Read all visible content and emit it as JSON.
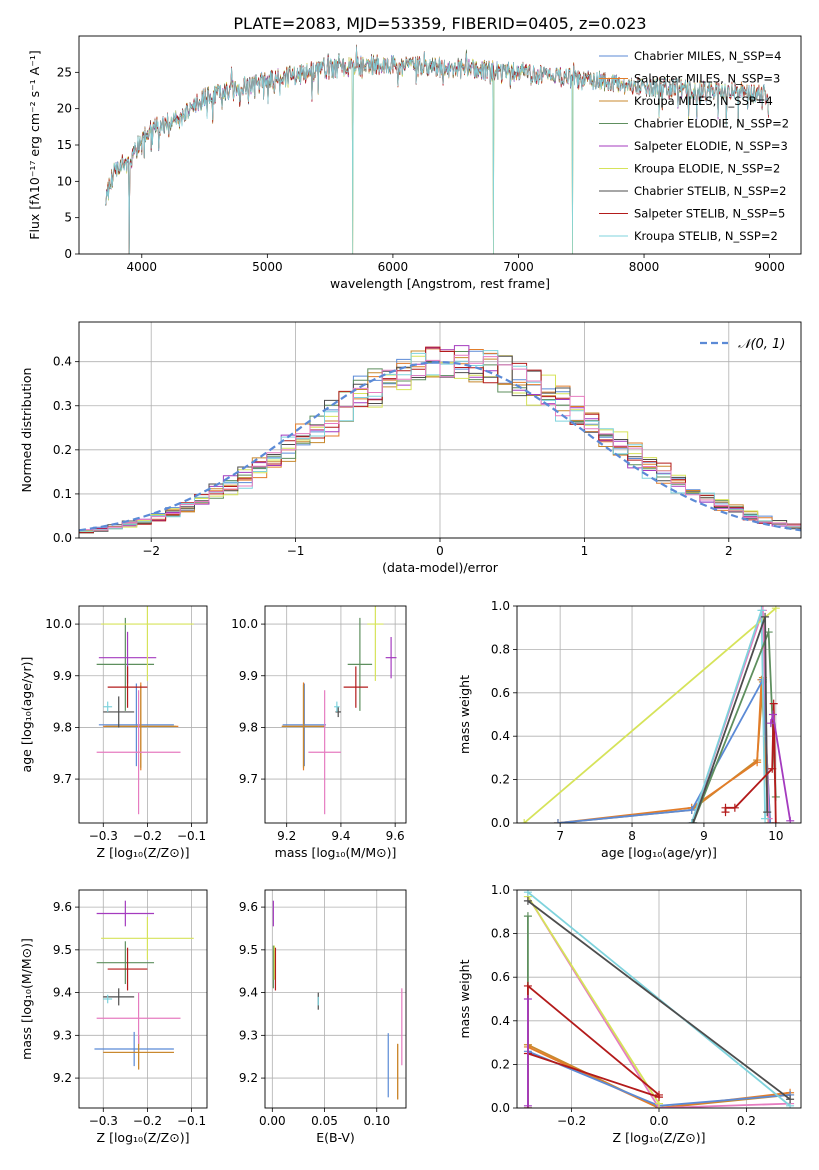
{
  "figure_title": "PLATE=2083, MJD=53359, FIBERID=0405, z=0.023",
  "colors": {
    "c1": "#5b8ad6",
    "c2": "#e27d2a",
    "c3": "#c8892f",
    "c4": "#5e8f5e",
    "c5": "#a43bbf",
    "c6": "#d6e35a",
    "c7": "#4d4d4d",
    "c8": "#b31b1b",
    "c9": "#7fd3dd",
    "c10": "#e67cc0",
    "gauss": "#5b8ad6"
  },
  "chart_data": [
    {
      "id": "spectrum",
      "type": "line",
      "title": "PLATE=2083, MJD=53359, FIBERID=0405, z=0.023",
      "xlabel": "wavelength [Angstrom, rest frame]",
      "ylabel": "Flux [fλ10⁻¹⁷ erg cm⁻² s⁻¹ A⁻¹]",
      "xlim": [
        3500,
        9250
      ],
      "ylim": [
        0,
        30
      ],
      "xticks": [
        4000,
        5000,
        6000,
        7000,
        8000,
        9000
      ],
      "yticks": [
        0,
        5,
        10,
        15,
        20,
        25
      ],
      "grid": false,
      "legend_position": "top-right",
      "spectrum_range": [
        3710,
        8990
      ],
      "series": [
        {
          "name": "Chabrier MILES, N_SSP=4",
          "color_key": "c1"
        },
        {
          "name": "Salpeter MILES, N_SSP=3",
          "color_key": "c2"
        },
        {
          "name": "Kroupa MILES, N_SSP=4",
          "color_key": "c3"
        },
        {
          "name": "Chabrier ELODIE, N_SSP=2",
          "color_key": "c4"
        },
        {
          "name": "Salpeter ELODIE, N_SSP=3",
          "color_key": "c5"
        },
        {
          "name": "Kroupa ELODIE, N_SSP=2",
          "color_key": "c6"
        },
        {
          "name": "Chabrier STELIB, N_SSP=2",
          "color_key": "c7"
        },
        {
          "name": "Salpeter STELIB, N_SSP=5",
          "color_key": "c8"
        },
        {
          "name": "Kroupa STELIB, N_SSP=2",
          "color_key": "c9"
        }
      ],
      "continuum": [
        [
          3710,
          8
        ],
        [
          3800,
          12
        ],
        [
          3900,
          12.5
        ],
        [
          4000,
          16
        ],
        [
          4100,
          17.5
        ],
        [
          4300,
          18.5
        ],
        [
          4500,
          21.5
        ],
        [
          4800,
          23
        ],
        [
          5000,
          23.8
        ],
        [
          5200,
          24.5
        ],
        [
          5500,
          25.5
        ],
        [
          5800,
          26
        ],
        [
          6000,
          26
        ],
        [
          6500,
          25.5
        ],
        [
          7000,
          25
        ],
        [
          7500,
          24
        ],
        [
          8000,
          23
        ],
        [
          8500,
          22.5
        ],
        [
          8990,
          22
        ]
      ],
      "drops": [
        [
          3900,
          0
        ],
        [
          5680,
          0
        ],
        [
          6800,
          0
        ],
        [
          7430,
          0
        ]
      ]
    },
    {
      "id": "residuals",
      "type": "histogram",
      "xlabel": "(data-model)/error",
      "ylabel": "Normed distribution",
      "xlim": [
        -2.5,
        2.5
      ],
      "ylim": [
        0,
        0.49
      ],
      "xticks": [
        -2,
        -1,
        0,
        1,
        2
      ],
      "xtick_labels": [
        "−2",
        "−1",
        "0",
        "1",
        "2"
      ],
      "yticks": [
        0,
        0.1,
        0.2,
        0.3,
        0.4
      ],
      "ytick_labels": [
        "0.0",
        "0.1",
        "0.2",
        "0.3",
        "0.4"
      ],
      "grid": true,
      "legend_position": "top-right",
      "legend_label": "𝒩(0, 1)",
      "bin_width": 0.1,
      "shift": 0.12,
      "series_color_keys": [
        "c1",
        "c2",
        "c3",
        "c4",
        "c5",
        "c6",
        "c7",
        "c8",
        "c9",
        "c10"
      ]
    },
    {
      "id": "age-vs-z",
      "type": "errorbar",
      "xlabel": "Z [log₁₀(Z/Z⊙)]",
      "ylabel": "age  [log₁₀(age/yr)]",
      "xlim": [
        -0.355,
        -0.065
      ],
      "ylim": [
        9.615,
        10.035
      ],
      "xticks": [
        -0.3,
        -0.2,
        -0.1
      ],
      "xtick_labels": [
        "−0.3",
        "−0.2",
        "−0.1"
      ],
      "yticks": [
        9.7,
        9.8,
        9.9,
        10.0
      ],
      "ytick_labels": [
        "9.7",
        "9.8",
        "9.9",
        "10.0"
      ],
      "grid": true,
      "points": [
        {
          "x": -0.225,
          "y": 9.805,
          "xerr": 0.085,
          "yerr": 0.08,
          "color_key": "c1"
        },
        {
          "x": -0.215,
          "y": 9.802,
          "xerr": 0.085,
          "yerr": 0.085,
          "color_key": "c2"
        },
        {
          "x": -0.215,
          "y": 9.802,
          "xerr": 0.08,
          "yerr": 0.08,
          "color_key": "c3"
        },
        {
          "x": -0.25,
          "y": 9.922,
          "xerr": 0.065,
          "yerr": 0.09,
          "color_key": "c4"
        },
        {
          "x": -0.245,
          "y": 9.935,
          "xerr": 0.065,
          "yerr": 0.05,
          "color_key": "c5"
        },
        {
          "x": -0.2,
          "y": 10.0,
          "xerr": 0.105,
          "yerr": 0.11,
          "color_key": "c6"
        },
        {
          "x": -0.265,
          "y": 9.83,
          "xerr": 0.035,
          "yerr": 0.03,
          "color_key": "c7"
        },
        {
          "x": -0.245,
          "y": 9.878,
          "xerr": 0.045,
          "yerr": 0.04,
          "color_key": "c8"
        },
        {
          "x": -0.29,
          "y": 9.84,
          "xerr": 0.01,
          "yerr": 0.01,
          "color_key": "c9"
        },
        {
          "x": -0.22,
          "y": 9.752,
          "xerr": 0.095,
          "yerr": 0.12,
          "color_key": "c10"
        }
      ]
    },
    {
      "id": "age-vs-mass",
      "type": "errorbar",
      "xlabel": "mass [log₁₀(M/M⊙)]",
      "ylabel": "",
      "xlim": [
        9.12,
        9.64
      ],
      "ylim": [
        9.615,
        10.035
      ],
      "xticks": [
        9.2,
        9.4,
        9.6
      ],
      "xtick_labels": [
        "9.2",
        "9.4",
        "9.6"
      ],
      "yticks": [
        9.7,
        9.8,
        9.9,
        10.0
      ],
      "ytick_labels": [
        "9.7",
        "9.8",
        "9.9",
        "10.0"
      ],
      "grid": true,
      "points": [
        {
          "x": 9.265,
          "y": 9.805,
          "xerr": 0.08,
          "yerr": 0.08,
          "color_key": "c1"
        },
        {
          "x": 9.262,
          "y": 9.802,
          "xerr": 0.08,
          "yerr": 0.085,
          "color_key": "c2"
        },
        {
          "x": 9.262,
          "y": 9.802,
          "xerr": 0.08,
          "yerr": 0.08,
          "color_key": "c3"
        },
        {
          "x": 9.47,
          "y": 9.922,
          "xerr": 0.045,
          "yerr": 0.09,
          "color_key": "c4"
        },
        {
          "x": 9.585,
          "y": 9.935,
          "xerr": 0.02,
          "yerr": 0.04,
          "color_key": "c5"
        },
        {
          "x": 9.527,
          "y": 10.0,
          "xerr": 0.03,
          "yerr": 0.11,
          "color_key": "c6"
        },
        {
          "x": 9.39,
          "y": 9.83,
          "xerr": 0.01,
          "yerr": 0.01,
          "color_key": "c7"
        },
        {
          "x": 9.455,
          "y": 9.878,
          "xerr": 0.045,
          "yerr": 0.04,
          "color_key": "c8"
        },
        {
          "x": 9.385,
          "y": 9.84,
          "xerr": 0.01,
          "yerr": 0.01,
          "color_key": "c9"
        },
        {
          "x": 9.34,
          "y": 9.752,
          "xerr": 0.06,
          "yerr": 0.12,
          "color_key": "c10"
        }
      ]
    },
    {
      "id": "weight-vs-age",
      "type": "line",
      "xlabel": "age  [log₁₀(age/yr)]",
      "ylabel": "mass weight",
      "xlim": [
        6.4,
        10.35
      ],
      "ylim": [
        0,
        1.0
      ],
      "xticks": [
        7,
        8,
        9,
        10
      ],
      "xtick_labels": [
        "7",
        "8",
        "9",
        "10"
      ],
      "yticks": [
        0,
        0.2,
        0.4,
        0.6,
        0.8,
        1.0
      ],
      "ytick_labels": [
        "0.0",
        "0.2",
        "0.4",
        "0.6",
        "0.8",
        "1.0"
      ],
      "grid": true,
      "series": [
        {
          "color_key": "c3",
          "points": [
            [
              6.97,
              0.0
            ],
            [
              8.83,
              0.06
            ],
            [
              9.74,
              0.29
            ],
            [
              9.82,
              0.65
            ],
            [
              9.82,
              0.67
            ],
            [
              9.92,
              0.0
            ]
          ]
        },
        {
          "color_key": "c2",
          "points": [
            [
              6.97,
              0.0
            ],
            [
              8.83,
              0.07
            ],
            [
              9.74,
              0.28
            ],
            [
              9.8,
              0.66
            ],
            [
              9.9,
              0.0
            ]
          ]
        },
        {
          "color_key": "c1",
          "points": [
            [
              6.97,
              0.0
            ],
            [
              8.83,
              0.06
            ],
            [
              9.82,
              0.66
            ],
            [
              9.92,
              0.0
            ]
          ]
        },
        {
          "color_key": "c10",
          "points": [
            [
              8.83,
              0.0
            ],
            [
              9.82,
              0.98
            ],
            [
              9.9,
              0.02
            ]
          ]
        },
        {
          "color_key": "c6",
          "points": [
            [
              6.5,
              0.0
            ],
            [
              10.0,
              0.99
            ]
          ]
        },
        {
          "color_key": "c9",
          "points": [
            [
              8.83,
              0.0
            ],
            [
              9.8,
              0.98
            ],
            [
              9.85,
              0.02
            ]
          ]
        },
        {
          "color_key": "c4",
          "points": [
            [
              8.85,
              0.0
            ],
            [
              9.9,
              0.88
            ],
            [
              10.0,
              0.12
            ]
          ]
        },
        {
          "color_key": "c7",
          "points": [
            [
              8.85,
              0.0
            ],
            [
              9.85,
              0.95
            ],
            [
              9.88,
              0.05
            ]
          ]
        },
        {
          "color_key": "c8",
          "points": [
            [
              9.3,
              0.05
            ],
            [
              9.3,
              0.07
            ],
            [
              9.43,
              0.07
            ],
            [
              9.95,
              0.25
            ],
            [
              9.97,
              0.55
            ],
            [
              10.0,
              0.0
            ]
          ]
        },
        {
          "color_key": "c5",
          "points": [
            [
              9.93,
              0.46
            ],
            [
              9.96,
              0.5
            ],
            [
              10.2,
              0.01
            ]
          ]
        }
      ]
    },
    {
      "id": "mass-vs-z",
      "type": "errorbar",
      "xlabel": "Z [log₁₀(Z/Z⊙)]",
      "ylabel": "mass [log₁₀(M/M⊙)]",
      "xlim": [
        -0.355,
        -0.065
      ],
      "ylim": [
        9.13,
        9.64
      ],
      "xticks": [
        -0.3,
        -0.2,
        -0.1
      ],
      "xtick_labels": [
        "−0.3",
        "−0.2",
        "−0.1"
      ],
      "yticks": [
        9.2,
        9.3,
        9.4,
        9.5,
        9.6
      ],
      "ytick_labels": [
        "9.2",
        "9.3",
        "9.4",
        "9.5",
        "9.6"
      ],
      "grid": true,
      "points": [
        {
          "x": -0.23,
          "y": 9.268,
          "xerr": 0.09,
          "yerr": 0.04,
          "color_key": "c1"
        },
        {
          "x": -0.22,
          "y": 9.26,
          "xerr": 0.08,
          "yerr": 0.04,
          "color_key": "c2"
        },
        {
          "x": -0.22,
          "y": 9.26,
          "xerr": 0.08,
          "yerr": 0.04,
          "color_key": "c3"
        },
        {
          "x": -0.25,
          "y": 9.47,
          "xerr": 0.065,
          "yerr": 0.05,
          "color_key": "c4"
        },
        {
          "x": -0.25,
          "y": 9.585,
          "xerr": 0.065,
          "yerr": 0.03,
          "color_key": "c5"
        },
        {
          "x": -0.2,
          "y": 9.527,
          "xerr": 0.105,
          "yerr": 0.05,
          "color_key": "c6"
        },
        {
          "x": -0.265,
          "y": 9.39,
          "xerr": 0.035,
          "yerr": 0.02,
          "color_key": "c7"
        },
        {
          "x": -0.245,
          "y": 9.455,
          "xerr": 0.045,
          "yerr": 0.05,
          "color_key": "c8"
        },
        {
          "x": -0.29,
          "y": 9.385,
          "xerr": 0.01,
          "yerr": 0.01,
          "color_key": "c9"
        },
        {
          "x": -0.22,
          "y": 9.34,
          "xerr": 0.095,
          "yerr": 0.06,
          "color_key": "c10"
        }
      ]
    },
    {
      "id": "mass-vs-ebv",
      "type": "errorbar",
      "xlabel": "E(B-V)",
      "ylabel": "",
      "xlim": [
        -0.007,
        0.128
      ],
      "ylim": [
        9.13,
        9.64
      ],
      "xticks": [
        0.0,
        0.05,
        0.1
      ],
      "xtick_labels": [
        "0.00",
        "0.05",
        "0.10"
      ],
      "yticks": [
        9.2,
        9.3,
        9.4,
        9.5,
        9.6
      ],
      "ytick_labels": [
        "9.2",
        "9.3",
        "9.4",
        "9.5",
        "9.6"
      ],
      "grid": true,
      "points": [
        {
          "x": 0.111,
          "y": 9.23,
          "xerr": 0.0,
          "yerr": 0.075,
          "color_key": "c1"
        },
        {
          "x": 0.12,
          "y": 9.215,
          "xerr": 0.0,
          "yerr": 0.065,
          "color_key": "c2"
        },
        {
          "x": 0.12,
          "y": 9.215,
          "xerr": 0.0,
          "yerr": 0.065,
          "color_key": "c3"
        },
        {
          "x": 0.001,
          "y": 9.46,
          "xerr": 0.0,
          "yerr": 0.05,
          "color_key": "c4"
        },
        {
          "x": 0.001,
          "y": 9.585,
          "xerr": 0.0,
          "yerr": 0.03,
          "color_key": "c5"
        },
        {
          "x": 0.002,
          "y": 9.47,
          "xerr": 0.0,
          "yerr": 0.04,
          "color_key": "c6"
        },
        {
          "x": 0.044,
          "y": 9.38,
          "xerr": 0.0,
          "yerr": 0.02,
          "color_key": "c7"
        },
        {
          "x": 0.003,
          "y": 9.455,
          "xerr": 0.0,
          "yerr": 0.05,
          "color_key": "c8"
        },
        {
          "x": 0.044,
          "y": 9.38,
          "xerr": 0.0,
          "yerr": 0.01,
          "color_key": "c9"
        },
        {
          "x": 0.124,
          "y": 9.32,
          "xerr": 0.0,
          "yerr": 0.09,
          "color_key": "c10"
        }
      ]
    },
    {
      "id": "weight-vs-z",
      "type": "line",
      "xlabel": "Z [log₁₀(Z/Z⊙)]",
      "ylabel": "mass weight",
      "xlim": [
        -0.325,
        0.325
      ],
      "ylim": [
        0,
        1.0
      ],
      "xticks": [
        -0.2,
        0.0,
        0.2
      ],
      "xtick_labels": [
        "−0.2",
        "0.0",
        "0.2"
      ],
      "yticks": [
        0,
        0.2,
        0.4,
        0.6,
        0.8,
        1.0
      ],
      "ytick_labels": [
        "0.0",
        "0.2",
        "0.4",
        "0.6",
        "0.8",
        "1.0"
      ],
      "grid": true,
      "series": [
        {
          "color_key": "c3",
          "points": [
            [
              -0.3,
              0.29
            ],
            [
              0.0,
              0.0
            ],
            [
              0.3,
              0.06
            ]
          ]
        },
        {
          "color_key": "c2",
          "points": [
            [
              -0.3,
              0.28
            ],
            [
              0.0,
              0.0
            ],
            [
              0.3,
              0.07
            ]
          ]
        },
        {
          "color_key": "c1",
          "points": [
            [
              -0.3,
              0.26
            ],
            [
              0.0,
              0.01
            ],
            [
              0.3,
              0.06
            ]
          ]
        },
        {
          "color_key": "c10",
          "points": [
            [
              -0.3,
              0.97
            ],
            [
              0.0,
              0.0
            ],
            [
              0.3,
              0.02
            ]
          ]
        },
        {
          "color_key": "c6",
          "points": [
            [
              -0.3,
              0.97
            ],
            [
              0.0,
              0.02
            ]
          ]
        },
        {
          "color_key": "c9",
          "points": [
            [
              -0.3,
              0.99
            ],
            [
              0.3,
              0.01
            ]
          ]
        },
        {
          "color_key": "c4",
          "points": [
            [
              -0.3,
              0.88
            ],
            [
              -0.3,
              0.0
            ]
          ]
        },
        {
          "color_key": "c7",
          "points": [
            [
              -0.3,
              0.95
            ],
            [
              0.3,
              0.04
            ]
          ]
        },
        {
          "color_key": "c8",
          "points": [
            [
              -0.3,
              0.25
            ],
            [
              0.0,
              0.05
            ],
            [
              0.0,
              0.06
            ],
            [
              -0.3,
              0.56
            ],
            [
              -0.3,
              0.0
            ]
          ]
        },
        {
          "color_key": "c5",
          "points": [
            [
              -0.3,
              0.5
            ],
            [
              -0.3,
              0.01
            ]
          ]
        }
      ]
    }
  ]
}
